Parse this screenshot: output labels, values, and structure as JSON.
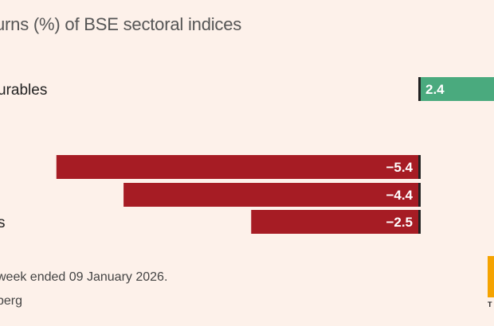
{
  "chart_data": {
    "type": "bar",
    "orientation": "horizontal",
    "title": "urns (%) of BSE sectoral indices",
    "categories": [
      "urables",
      "",
      "",
      "s"
    ],
    "values": [
      2.4,
      -5.4,
      -4.4,
      -2.5
    ],
    "value_labels": [
      "2.4",
      "−5.4",
      "−4.4",
      "−2.5"
    ],
    "xlim": [
      -6.2,
      1.5
    ],
    "grid": false,
    "legend": "none",
    "colors": {
      "positive": "#4aaa7e",
      "negative": "#a61c24",
      "zero_line": "#222222"
    }
  },
  "note": " week ended 09 January 2026.",
  "source": "berg",
  "logo_text": "T"
}
